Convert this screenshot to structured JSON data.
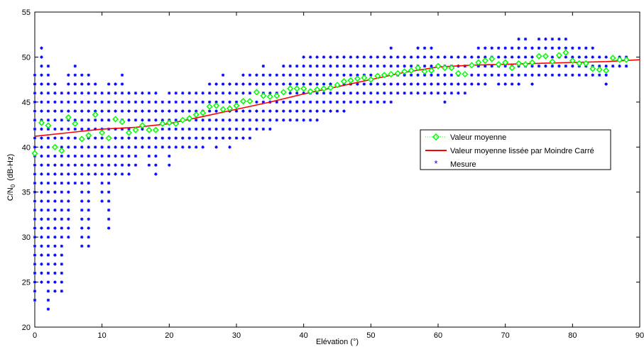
{
  "chart_data": {
    "type": "scatter",
    "title": "",
    "xlabel": "Elévation (°)",
    "ylabel_main": "C/N",
    "ylabel_sub": "0",
    "ylabel_unit": "(dB-Hz)",
    "xlim": [
      0,
      90
    ],
    "ylim": [
      20,
      55
    ],
    "xticks": [
      0,
      10,
      20,
      30,
      40,
      50,
      60,
      70,
      80,
      90
    ],
    "yticks": [
      20,
      25,
      30,
      35,
      40,
      45,
      50,
      55
    ],
    "grid": false,
    "legend_position": "right",
    "legend": [
      {
        "label": "Valeur moyenne",
        "marker": "diamond",
        "color": "#00ff00"
      },
      {
        "label": "Valeur moyenne lissée par Moindre Carré",
        "marker": "line",
        "color": "#ff0000"
      },
      {
        "label": "Mesure",
        "marker": "asterisk",
        "color": "#0000ff"
      }
    ],
    "measure_ranges": [
      [
        0,
        23,
        48
      ],
      [
        1,
        25,
        51
      ],
      [
        2,
        22,
        49
      ],
      [
        3,
        24,
        47
      ],
      [
        4,
        24,
        46
      ],
      [
        5,
        30,
        48
      ],
      [
        6,
        36,
        49
      ],
      [
        7,
        29,
        48
      ],
      [
        8,
        29,
        48
      ],
      [
        9,
        37,
        47
      ],
      [
        10,
        34,
        46
      ],
      [
        11,
        31,
        47
      ],
      [
        12,
        37,
        47
      ],
      [
        13,
        37,
        48
      ],
      [
        14,
        37,
        46
      ],
      [
        15,
        38,
        46
      ],
      [
        16,
        40,
        46
      ],
      [
        17,
        38,
        46
      ],
      [
        18,
        37,
        46
      ],
      [
        19,
        40,
        45
      ],
      [
        20,
        38,
        46
      ],
      [
        21,
        40,
        46
      ],
      [
        22,
        40,
        46
      ],
      [
        23,
        40,
        46
      ],
      [
        24,
        40,
        46
      ],
      [
        25,
        40,
        46
      ],
      [
        26,
        41,
        47
      ],
      [
        27,
        40,
        47
      ],
      [
        28,
        41,
        48
      ],
      [
        29,
        40,
        47
      ],
      [
        30,
        41,
        47
      ],
      [
        31,
        41,
        48
      ],
      [
        32,
        41,
        48
      ],
      [
        33,
        42,
        48
      ],
      [
        34,
        42,
        49
      ],
      [
        35,
        42,
        48
      ],
      [
        36,
        43,
        48
      ],
      [
        37,
        43,
        49
      ],
      [
        38,
        43,
        49
      ],
      [
        39,
        43,
        49
      ],
      [
        40,
        43,
        50
      ],
      [
        41,
        43,
        50
      ],
      [
        42,
        43,
        50
      ],
      [
        43,
        44,
        50
      ],
      [
        44,
        44,
        50
      ],
      [
        45,
        44,
        50
      ],
      [
        46,
        44,
        50
      ],
      [
        47,
        45,
        50
      ],
      [
        48,
        45,
        50
      ],
      [
        49,
        45,
        50
      ],
      [
        50,
        45,
        50
      ],
      [
        51,
        45,
        50
      ],
      [
        52,
        45,
        50
      ],
      [
        53,
        45,
        51
      ],
      [
        54,
        46,
        50
      ],
      [
        55,
        46,
        50
      ],
      [
        56,
        46,
        50
      ],
      [
        57,
        46,
        51
      ],
      [
        58,
        46,
        51
      ],
      [
        59,
        46,
        51
      ],
      [
        60,
        46,
        50
      ],
      [
        61,
        45,
        50
      ],
      [
        62,
        46,
        50
      ],
      [
        63,
        46,
        50
      ],
      [
        64,
        46,
        50
      ],
      [
        65,
        47,
        50
      ],
      [
        66,
        47,
        51
      ],
      [
        67,
        47,
        51
      ],
      [
        68,
        48,
        51
      ],
      [
        69,
        47,
        51
      ],
      [
        70,
        47,
        51
      ],
      [
        71,
        47,
        51
      ],
      [
        72,
        47,
        52
      ],
      [
        73,
        48,
        52
      ],
      [
        74,
        47,
        51
      ],
      [
        75,
        48,
        52
      ],
      [
        76,
        48,
        52
      ],
      [
        77,
        48,
        52
      ],
      [
        78,
        48,
        52
      ],
      [
        79,
        48,
        52
      ],
      [
        80,
        48,
        51
      ],
      [
        81,
        48,
        51
      ],
      [
        82,
        48,
        51
      ],
      [
        83,
        48,
        51
      ],
      [
        84,
        48,
        50
      ],
      [
        85,
        47,
        50
      ],
      [
        86,
        49,
        50
      ],
      [
        87,
        49,
        50
      ],
      [
        88,
        49,
        50
      ]
    ],
    "mean": {
      "x": [
        0,
        1,
        2,
        3,
        4,
        5,
        6,
        7,
        8,
        9,
        10,
        11,
        12,
        13,
        14,
        15,
        16,
        17,
        18,
        19,
        20,
        21,
        22,
        23,
        24,
        25,
        26,
        27,
        28,
        29,
        30,
        31,
        32,
        33,
        34,
        35,
        36,
        37,
        38,
        39,
        40,
        41,
        42,
        43,
        44,
        45,
        46,
        47,
        48,
        49,
        50,
        51,
        52,
        53,
        54,
        55,
        56,
        57,
        58,
        59,
        60,
        61,
        62,
        63,
        64,
        65,
        66,
        67,
        68,
        69,
        70,
        71,
        72,
        73,
        74,
        75,
        76,
        77,
        78,
        79,
        80,
        81,
        82,
        83,
        84,
        85,
        86,
        87,
        88
      ],
      "y": [
        39.3,
        42.7,
        42.4,
        40.0,
        39.6,
        43.3,
        42.6,
        40.9,
        41.3,
        43.6,
        41.6,
        41.0,
        43.1,
        42.8,
        41.6,
        41.9,
        42.4,
        41.9,
        41.9,
        42.6,
        42.7,
        42.6,
        43.0,
        43.2,
        43.6,
        43.8,
        44.5,
        44.6,
        44.2,
        44.3,
        44.6,
        45.1,
        45.1,
        46.1,
        45.7,
        45.6,
        45.7,
        46.1,
        46.5,
        46.5,
        46.5,
        46.2,
        46.4,
        46.5,
        46.6,
        46.9,
        47.3,
        47.4,
        47.6,
        47.7,
        47.5,
        47.9,
        48.0,
        48.1,
        48.2,
        48.4,
        48.5,
        48.8,
        48.4,
        48.5,
        49.0,
        48.8,
        48.8,
        48.2,
        48.1,
        49.1,
        49.4,
        49.6,
        49.8,
        49.2,
        49.4,
        48.8,
        49.3,
        49.2,
        49.4,
        50.1,
        50.1,
        49.5,
        50.2,
        50.5,
        49.6,
        49.3,
        49.3,
        48.7,
        48.6,
        48.5,
        49.9,
        49.7,
        49.7
      ]
    },
    "smoothed": {
      "x": [
        0,
        5,
        10,
        15,
        20,
        25,
        30,
        35,
        40,
        45,
        50,
        55,
        60,
        65,
        70,
        75,
        80,
        85,
        90
      ],
      "y": [
        41.2,
        41.6,
        42.0,
        42.2,
        42.6,
        43.4,
        44.2,
        45.0,
        45.9,
        46.7,
        47.5,
        48.3,
        48.9,
        49.1,
        49.2,
        49.3,
        49.4,
        49.5,
        49.7
      ]
    }
  }
}
